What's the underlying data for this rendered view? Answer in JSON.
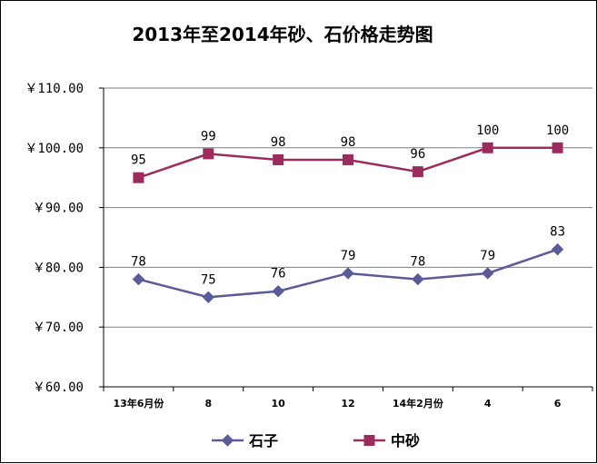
{
  "chart_data": {
    "type": "line",
    "title": "2013年至2014年砂、石价格走势图",
    "categories": [
      "13年6月份",
      "8",
      "10",
      "12",
      "14年2月份",
      "4",
      "6"
    ],
    "y_tick_labels": [
      "￥60.00",
      "￥70.00",
      "￥80.00",
      "￥90.00",
      "￥100.00",
      "￥110.00"
    ],
    "ylim": [
      60,
      110
    ],
    "grid": true,
    "legend_position": "bottom",
    "series": [
      {
        "name": "石子",
        "values": [
          78,
          75,
          76,
          79,
          78,
          79,
          83
        ],
        "color": "#5b5b9a",
        "marker": "diamond"
      },
      {
        "name": "中砂",
        "values": [
          95,
          99,
          98,
          98,
          96,
          100,
          100
        ],
        "color": "#9b2d5e",
        "marker": "square"
      }
    ]
  }
}
